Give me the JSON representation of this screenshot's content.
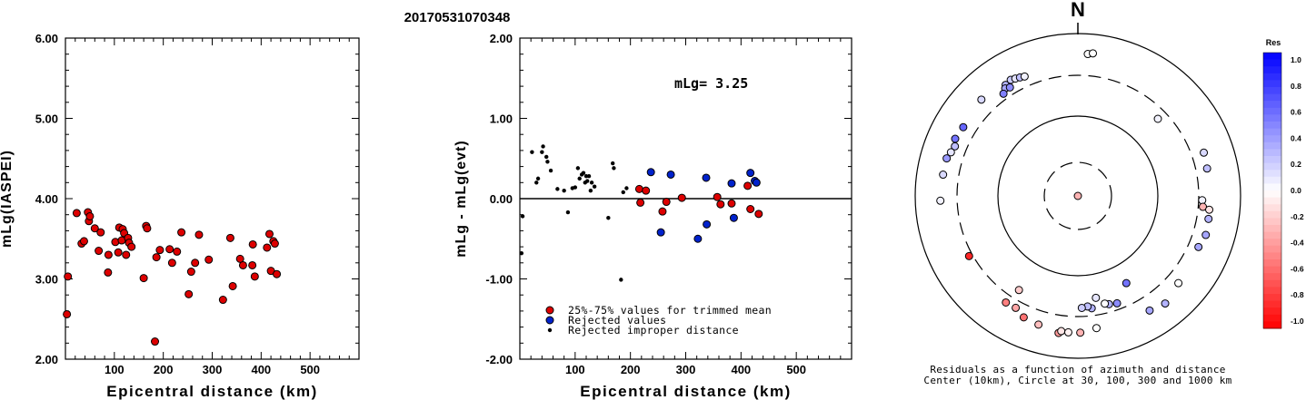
{
  "title": "20170531070348",
  "chart_data": [
    {
      "type": "scatter",
      "xlabel": "Epicentral distance (km)",
      "ylabel": "mLg(IASPEI)",
      "xlim": [
        0,
        600
      ],
      "ylim": [
        2.0,
        6.0
      ],
      "xticks": [
        "100",
        "200",
        "300",
        "400",
        "500"
      ],
      "yticks": [
        "2.00",
        "3.00",
        "4.00",
        "5.00",
        "6.00"
      ],
      "series": [
        {
          "color": "#dd0000",
          "points": [
            [
              3,
              2.56
            ],
            [
              5,
              3.03
            ],
            [
              23,
              3.82
            ],
            [
              33,
              3.44
            ],
            [
              38,
              3.47
            ],
            [
              46,
              3.83
            ],
            [
              48,
              3.72
            ],
            [
              50,
              3.78
            ],
            [
              60,
              3.63
            ],
            [
              68,
              3.35
            ],
            [
              72,
              3.58
            ],
            [
              87,
              3.08
            ],
            [
              88,
              3.3
            ],
            [
              102,
              3.46
            ],
            [
              108,
              3.33
            ],
            [
              110,
              3.64
            ],
            [
              115,
              3.48
            ],
            [
              117,
              3.62
            ],
            [
              120,
              3.57
            ],
            [
              124,
              3.3
            ],
            [
              128,
              3.51
            ],
            [
              130,
              3.45
            ],
            [
              135,
              3.4
            ],
            [
              160,
              3.01
            ],
            [
              165,
              3.66
            ],
            [
              167,
              3.63
            ],
            [
              183,
              2.22
            ],
            [
              186,
              3.27
            ],
            [
              193,
              3.36
            ],
            [
              213,
              3.37
            ],
            [
              218,
              3.2
            ],
            [
              228,
              3.34
            ],
            [
              237,
              3.58
            ],
            [
              252,
              2.81
            ],
            [
              257,
              3.09
            ],
            [
              265,
              3.2
            ],
            [
              273,
              3.55
            ],
            [
              293,
              3.24
            ],
            [
              322,
              2.74
            ],
            [
              337,
              3.51
            ],
            [
              342,
              2.91
            ],
            [
              357,
              3.25
            ],
            [
              363,
              3.17
            ],
            [
              382,
              3.17
            ],
            [
              383,
              3.43
            ],
            [
              387,
              3.03
            ],
            [
              412,
              3.39
            ],
            [
              417,
              3.56
            ],
            [
              420,
              3.1
            ],
            [
              425,
              3.47
            ],
            [
              428,
              3.44
            ],
            [
              432,
              3.06
            ]
          ]
        }
      ]
    },
    {
      "type": "scatter",
      "xlabel": "Epicentral distance (km)",
      "ylabel": "mLg - mLg(evt)",
      "xlim": [
        0,
        600
      ],
      "ylim": [
        -2.0,
        2.0
      ],
      "xticks": [
        "100",
        "200",
        "300",
        "400",
        "500"
      ],
      "yticks": [
        "-2.00",
        "-1.00",
        "0.00",
        "1.00",
        "2.00"
      ],
      "annotation": "mLg= 3.25",
      "legend": [
        "25%-75% values for trimmed mean",
        "Rejected values",
        "Rejected improper distance"
      ],
      "series": [
        {
          "name": "25%-75% values for trimmed mean",
          "color": "#dd0000",
          "points": [
            [
              216,
              0.12
            ],
            [
              218,
              -0.05
            ],
            [
              228,
              0.1
            ],
            [
              258,
              -0.16
            ],
            [
              265,
              -0.04
            ],
            [
              293,
              0.01
            ],
            [
              357,
              0.02
            ],
            [
              363,
              -0.07
            ],
            [
              383,
              -0.06
            ],
            [
              412,
              0.16
            ],
            [
              417,
              -0.13
            ],
            [
              432,
              -0.19
            ]
          ]
        },
        {
          "name": "Rejected values",
          "color": "#0022cc",
          "points": [
            [
              237,
              0.33
            ],
            [
              255,
              -0.42
            ],
            [
              273,
              0.3
            ],
            [
              322,
              -0.5
            ],
            [
              337,
              0.26
            ],
            [
              338,
              -0.32
            ],
            [
              383,
              0.19
            ],
            [
              387,
              -0.24
            ],
            [
              417,
              0.32
            ],
            [
              425,
              0.22
            ],
            [
              428,
              0.2
            ]
          ]
        },
        {
          "name": "Rejected improper distance",
          "color": "#000000",
          "points": [
            [
              3,
              -0.68
            ],
            [
              5,
              -0.22
            ],
            [
              22,
              0.58
            ],
            [
              30,
              0.2
            ],
            [
              33,
              0.25
            ],
            [
              40,
              0.58
            ],
            [
              42,
              0.65
            ],
            [
              48,
              0.52
            ],
            [
              50,
              0.46
            ],
            [
              56,
              0.35
            ],
            [
              68,
              0.12
            ],
            [
              80,
              0.1
            ],
            [
              87,
              -0.17
            ],
            [
              95,
              0.13
            ],
            [
              100,
              0.14
            ],
            [
              105,
              0.38
            ],
            [
              108,
              0.25
            ],
            [
              112,
              0.3
            ],
            [
              115,
              0.32
            ],
            [
              118,
              0.2
            ],
            [
              120,
              0.28
            ],
            [
              122,
              0.22
            ],
            [
              125,
              0.28
            ],
            [
              128,
              0.1
            ],
            [
              130,
              0.2
            ],
            [
              135,
              0.15
            ],
            [
              160,
              -0.24
            ],
            [
              168,
              0.44
            ],
            [
              170,
              0.38
            ],
            [
              183,
              -1.01
            ],
            [
              187,
              0.08
            ],
            [
              193,
              0.13
            ]
          ]
        }
      ]
    },
    {
      "type": "scatter",
      "subtype": "polar",
      "north_label": "N",
      "caption": [
        "Residuals as a function of azimuth and distance",
        "Center (10km), Circle at 30, 100, 300 and 1000 km"
      ],
      "colorbar": {
        "title": "Res",
        "ticks": [
          "1.0",
          "0.8",
          "0.6",
          "0.4",
          "0.2",
          "0.0",
          "-0.2",
          "-0.4",
          "-0.6",
          "-0.8",
          "-1.0"
        ],
        "min": -1.0,
        "max": 1.0,
        "neg_color": "#ff0000",
        "pos_color": "#0000ff"
      },
      "points": [
        {
          "az": 180,
          "dist": 10,
          "res": -0.3
        },
        {
          "az": 4,
          "dist": 870,
          "res": 0.0
        },
        {
          "az": 6,
          "dist": 890,
          "res": 0.0
        },
        {
          "az": 315,
          "dist": 760,
          "res": 0.15
        },
        {
          "az": 327,
          "dist": 690,
          "res": 0.3
        },
        {
          "az": 330,
          "dist": 720,
          "res": 0.2
        },
        {
          "az": 332,
          "dist": 700,
          "res": 0.1
        },
        {
          "az": 334,
          "dist": 680,
          "res": 0.25
        },
        {
          "az": 336,
          "dist": 660,
          "res": 0.05
        },
        {
          "az": 326,
          "dist": 640,
          "res": 0.35
        },
        {
          "az": 328,
          "dist": 610,
          "res": 0.45
        },
        {
          "az": 324,
          "dist": 580,
          "res": 0.5
        },
        {
          "az": 301,
          "dist": 710,
          "res": 0.6
        },
        {
          "az": 295,
          "dist": 740,
          "res": 0.55
        },
        {
          "az": 292,
          "dist": 690,
          "res": 0.25
        },
        {
          "az": 289,
          "dist": 720,
          "res": 0.1
        },
        {
          "az": 286,
          "dist": 760,
          "res": 0.4
        },
        {
          "az": 279,
          "dist": 760,
          "res": 0.15
        },
        {
          "az": 268,
          "dist": 780,
          "res": 0.05
        },
        {
          "az": 241,
          "dist": 540,
          "res": -0.85
        },
        {
          "az": 214,
          "dist": 620,
          "res": -0.5
        },
        {
          "az": 209,
          "dist": 610,
          "res": -0.35
        },
        {
          "az": 204,
          "dist": 700,
          "res": -0.55
        },
        {
          "az": 197,
          "dist": 730,
          "res": -0.25
        },
        {
          "az": 188,
          "dist": 800,
          "res": -0.4
        },
        {
          "az": 187,
          "dist": 760,
          "res": -0.1
        },
        {
          "az": 184,
          "dist": 770,
          "res": -0.05
        },
        {
          "az": 179,
          "dist": 770,
          "res": -0.3
        },
        {
          "az": 172,
          "dist": 710,
          "res": 0.0
        },
        {
          "az": 212,
          "dist": 300,
          "res": -0.2
        },
        {
          "az": 160,
          "dist": 360,
          "res": 0.45
        },
        {
          "az": 164,
          "dist": 330,
          "res": 0.3
        },
        {
          "az": 166,
          "dist": 300,
          "res": 0.0
        },
        {
          "az": 170,
          "dist": 260,
          "res": 0.1
        },
        {
          "az": 173,
          "dist": 340,
          "res": 0.3
        },
        {
          "az": 175,
          "dist": 300,
          "res": 0.25
        },
        {
          "az": 178,
          "dist": 320,
          "res": 0.2
        },
        {
          "az": 151,
          "dist": 240,
          "res": 0.55
        },
        {
          "az": 148,
          "dist": 740,
          "res": 0.35
        },
        {
          "az": 141,
          "dist": 800,
          "res": 0.3
        },
        {
          "az": 131,
          "dist": 700,
          "res": 0.0
        },
        {
          "az": 92,
          "dist": 540,
          "res": 0.05
        },
        {
          "az": 95,
          "dist": 560,
          "res": -0.3
        },
        {
          "az": 96,
          "dist": 680,
          "res": -0.1
        },
        {
          "az": 100,
          "dist": 690,
          "res": 0.3
        },
        {
          "az": 107,
          "dist": 710,
          "res": 0.35
        },
        {
          "az": 113,
          "dist": 660,
          "res": 0.35
        },
        {
          "az": 78,
          "dist": 680,
          "res": 0.25
        },
        {
          "az": 71,
          "dist": 700,
          "res": 0.15
        },
        {
          "az": 46,
          "dist": 300,
          "res": 0.05
        }
      ]
    }
  ]
}
